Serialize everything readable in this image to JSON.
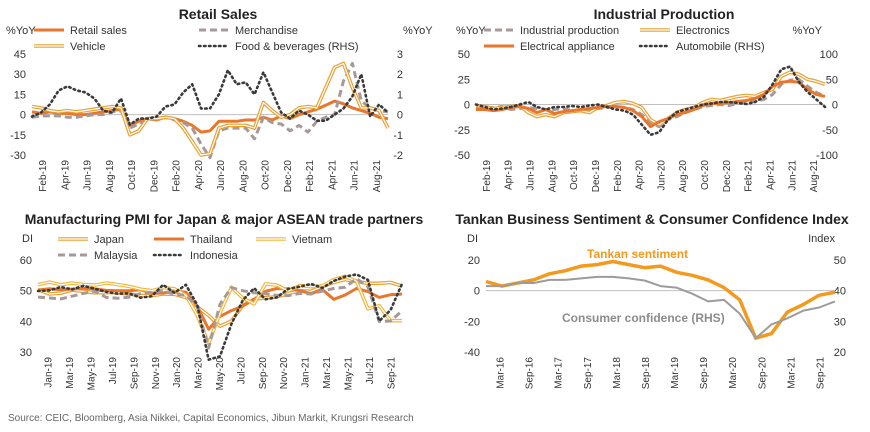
{
  "source": "Source: CEIC, Bloomberg, Asia Nikkei, Capital Economics, Jibun Markit, Krungsri Research",
  "chart_data": [
    {
      "id": "retail",
      "type": "line",
      "title": "Retail Sales",
      "left_unit": "%YoY",
      "right_unit": "%YoY",
      "ylim": [
        -30,
        45
      ],
      "yticks": [
        -30,
        -15,
        0,
        15,
        30,
        45
      ],
      "y2lim": [
        -2,
        3
      ],
      "y2ticks": [
        -2,
        -1,
        0,
        1,
        2,
        3
      ],
      "xlabels": [
        "Feb-19",
        "Apr-19",
        "Jun-19",
        "Aug-19",
        "Oct-19",
        "Dec-19",
        "Feb-20",
        "Apr-20",
        "Jun-20",
        "Aug-20",
        "Oct-20",
        "Dec-20",
        "Feb-21",
        "Apr-21",
        "Jun-21",
        "Aug-21"
      ],
      "series": [
        {
          "name": "Retail sales",
          "style": "solid-orange",
          "axis": "left",
          "values": [
            2,
            1,
            2,
            1,
            1,
            0,
            0,
            1,
            2,
            3,
            4,
            -8,
            -5,
            -3,
            -4,
            -2,
            -3,
            -5,
            -8,
            -13,
            -12,
            -5,
            -5,
            -5,
            -4,
            -4,
            -2,
            -4,
            -1,
            -3,
            0,
            2,
            4,
            7,
            10,
            8,
            5,
            3,
            1,
            -2,
            -3
          ]
        },
        {
          "name": "Merchandise",
          "style": "dash-gray",
          "axis": "left",
          "values": [
            -2,
            -1,
            -1,
            -1,
            -2,
            -2,
            -1,
            0,
            0,
            2,
            3,
            -10,
            -7,
            -4,
            -3,
            -2,
            -4,
            -6,
            -10,
            -22,
            -32,
            -12,
            -10,
            -10,
            -10,
            -18,
            -2,
            -6,
            -7,
            -12,
            -8,
            -13,
            -5,
            -2,
            0,
            25,
            38,
            10,
            5,
            3,
            2
          ]
        },
        {
          "name": "Vehicle",
          "style": "double-orange",
          "axis": "left",
          "values": [
            6,
            5,
            3,
            2,
            3,
            2,
            3,
            4,
            5,
            6,
            5,
            -15,
            -12,
            -3,
            -3,
            -2,
            -3,
            -10,
            -20,
            -30,
            -29,
            -10,
            -8,
            -8,
            -8,
            -10,
            9,
            3,
            -2,
            0,
            5,
            6,
            5,
            20,
            35,
            38,
            20,
            5,
            5,
            3,
            -10
          ]
        },
        {
          "name": "Food & beverages (RHS)",
          "style": "dot-dark",
          "axis": "right",
          "values": [
            -0.1,
            0.1,
            0.5,
            1.2,
            1.4,
            1.2,
            1.1,
            0.8,
            0.2,
            0.1,
            0.8,
            -0.5,
            -0.2,
            -0.2,
            -0.1,
            0.4,
            0.5,
            1.1,
            1.5,
            0.3,
            0.3,
            1.0,
            2.2,
            1.5,
            1.6,
            1.0,
            2.1,
            1.1,
            0.1,
            -0.2,
            0.2,
            0.0,
            -0.3,
            -0.3,
            0.0,
            0.3,
            0.9,
            2.0,
            -0.1,
            0.5,
            0.1
          ]
        }
      ]
    },
    {
      "id": "ip",
      "type": "line",
      "title": "Industrial Production",
      "left_unit": "%YoY",
      "right_unit": "%YoY",
      "ylim": [
        -50,
        50
      ],
      "yticks": [
        -50,
        -25,
        0,
        25,
        50
      ],
      "y2lim": [
        -100,
        100
      ],
      "y2ticks": [
        -100,
        -50,
        0,
        50,
        100
      ],
      "xlabels": [
        "Feb-19",
        "Apr-19",
        "Jun-19",
        "Aug-19",
        "Oct-19",
        "Dec-19",
        "Feb-20",
        "Apr-20",
        "Jun-20",
        "Aug-20",
        "Oct-20",
        "Dec-20",
        "Feb-21",
        "Apr-21",
        "Jun-21",
        "Aug-21"
      ],
      "series": [
        {
          "name": "Industrial production",
          "style": "dash-gray",
          "axis": "left",
          "values": [
            -3,
            -4,
            -3,
            -2,
            -5,
            -4,
            -3,
            -4,
            -5,
            -5,
            -4,
            -6,
            -6,
            -5,
            -4,
            -3,
            -2,
            -3,
            -5,
            -10,
            -18,
            -22,
            -15,
            -12,
            -8,
            -5,
            -2,
            -1,
            0,
            -1,
            1,
            2,
            3,
            5,
            10,
            20,
            24,
            25,
            18,
            12,
            8
          ]
        },
        {
          "name": "Electronics",
          "style": "double-orange",
          "axis": "left",
          "values": [
            -1,
            -2,
            -4,
            -3,
            -2,
            -1,
            -8,
            -12,
            -10,
            -12,
            -8,
            -7,
            -6,
            -8,
            -3,
            -1,
            2,
            3,
            1,
            -3,
            -15,
            -20,
            -14,
            -8,
            -5,
            -3,
            2,
            5,
            4,
            6,
            8,
            9,
            8,
            12,
            15,
            28,
            32,
            30,
            25,
            23,
            20
          ]
        },
        {
          "name": "Electrical appliance",
          "style": "solid-orange",
          "axis": "left",
          "values": [
            -5,
            -5,
            -6,
            -5,
            -3,
            -2,
            -4,
            -8,
            -5,
            -9,
            -7,
            -6,
            -5,
            -4,
            -3,
            -2,
            -2,
            -3,
            -6,
            -12,
            -22,
            -17,
            -14,
            -10,
            -8,
            -5,
            -1,
            1,
            1,
            2,
            3,
            4,
            6,
            10,
            18,
            22,
            23,
            22,
            15,
            10,
            8
          ]
        },
        {
          "name": "Automobile (RHS)",
          "style": "dot-dark",
          "axis": "right",
          "values": [
            0,
            -5,
            -10,
            -8,
            -5,
            0,
            5,
            -5,
            -10,
            -5,
            -5,
            -3,
            -5,
            -2,
            0,
            -5,
            -10,
            -12,
            -20,
            -40,
            -60,
            -55,
            -30,
            -15,
            -10,
            -5,
            0,
            2,
            5,
            5,
            3,
            1,
            5,
            15,
            40,
            70,
            75,
            45,
            25,
            10,
            -5
          ]
        }
      ]
    },
    {
      "id": "pmi",
      "type": "line",
      "title": "Manufacturing PMI for Japan & major ASEAN trade partners",
      "left_unit": "DI",
      "ylim": [
        30,
        60
      ],
      "yticks": [
        30,
        40,
        50,
        60
      ],
      "xlabels": [
        "Jan-19",
        "Mar-19",
        "May-19",
        "Jul-19",
        "Sep-19",
        "Nov-19",
        "Jan-20",
        "Mar-20",
        "May-20",
        "Jul-20",
        "Sep-20",
        "Nov-20",
        "Jan-21",
        "Mar-21",
        "May-21",
        "Jul-21",
        "Sep-21"
      ],
      "series": [
        {
          "name": "Japan",
          "style": "double-orange",
          "values": [
            50.3,
            48.9,
            49.2,
            50.2,
            49.8,
            49.3,
            49.4,
            49.3,
            48.9,
            48.4,
            48.4,
            48.9,
            48.8,
            47.8,
            44.8,
            41.9,
            38.4,
            40.1,
            45.2,
            47.2,
            47.7,
            48.0,
            49.0,
            50.0,
            49.8,
            51.4,
            52.7,
            53.6,
            53.0,
            52.4,
            52.4,
            52.7,
            51.5
          ]
        },
        {
          "name": "Thailand",
          "style": "solid-orange",
          "values": [
            50.2,
            50.6,
            50.3,
            50.5,
            50.7,
            50.6,
            50.1,
            50.0,
            50.0,
            50.3,
            49.1,
            49.2,
            49.9,
            49.5,
            45.0,
            37.4,
            41.6,
            43.5,
            45.0,
            47.2,
            49.8,
            50.7,
            50.6,
            50.0,
            49.0,
            50.3,
            47.2,
            48.6,
            50.7,
            49.7,
            47.8,
            48.7,
            48.9
          ]
        },
        {
          "name": "Vietnam",
          "style": "double-yellow",
          "values": [
            51.9,
            52.8,
            51.9,
            52.5,
            52.0,
            51.8,
            52.5,
            52.0,
            51.4,
            50.5,
            50.0,
            51.0,
            50.6,
            48.5,
            41.9,
            32.7,
            42.7,
            51.1,
            47.6,
            45.7,
            52.2,
            51.8,
            49.9,
            51.7,
            51.3,
            51.6,
            53.6,
            54.7,
            53.1,
            44.1,
            45.1,
            40.2,
            40.2
          ]
        },
        {
          "name": "Malaysia",
          "style": "dash-gray",
          "values": [
            47.9,
            47.6,
            47.3,
            48.2,
            49.1,
            49.8,
            47.8,
            47.5,
            47.9,
            49.0,
            49.5,
            50.0,
            48.8,
            48.5,
            44.8,
            31.3,
            45.6,
            51.0,
            50.0,
            49.3,
            49.0,
            48.5,
            48.4,
            49.1,
            48.9,
            49.9,
            50.7,
            51.1,
            53.9,
            51.3,
            39.9,
            40.1,
            43.4
          ]
        },
        {
          "name": "Indonesia",
          "style": "dot-dark",
          "values": [
            49.9,
            50.1,
            51.2,
            50.4,
            51.6,
            50.6,
            49.6,
            49.0,
            49.1,
            47.7,
            48.2,
            51.9,
            49.3,
            51.9,
            45.3,
            27.5,
            28.6,
            39.1,
            46.9,
            50.8,
            47.2,
            47.8,
            50.6,
            51.3,
            52.2,
            50.9,
            53.2,
            54.6,
            55.3,
            53.5,
            40.1,
            43.7,
            52.2
          ]
        }
      ]
    },
    {
      "id": "tankan",
      "type": "line",
      "title": "Tankan Business Sentiment & Consumer Confidence Index",
      "left_unit": "DI",
      "right_unit": "Index",
      "ylim": [
        -40,
        20
      ],
      "yticks": [
        -40,
        -20,
        0,
        20
      ],
      "y2lim": [
        20,
        50
      ],
      "y2ticks": [
        20,
        30,
        40,
        50
      ],
      "xlabels": [
        "Mar-16",
        "Sep-16",
        "Mar-17",
        "Sep-17",
        "Mar-18",
        "Sep-18",
        "Mar-19",
        "Sep-19",
        "Mar-20",
        "Sep-20",
        "Mar-21",
        "Sep-21"
      ],
      "annotations": [
        "Tankan sentiment",
        "Consumer confidence (RHS)"
      ],
      "series": [
        {
          "name": "Tankan sentiment",
          "style": "solid-orange-thick",
          "axis": "left",
          "values": [
            6,
            3,
            5,
            7,
            11,
            13,
            16,
            17,
            19,
            17,
            15,
            16,
            12,
            10,
            7,
            2,
            -6,
            -31,
            -28,
            -14,
            -9,
            -3,
            -1
          ]
        },
        {
          "name": "Consumer confidence (RHS)",
          "style": "solid-gray",
          "axis": "right",
          "values": [
            41.5,
            41.5,
            42.5,
            42.5,
            43.5,
            43.5,
            44.0,
            44.5,
            44.5,
            44.0,
            43.3,
            41.5,
            41.0,
            39.0,
            36.5,
            37.0,
            32.5,
            24.5,
            29.0,
            31.0,
            33.5,
            34.5,
            36.5
          ]
        }
      ]
    }
  ]
}
